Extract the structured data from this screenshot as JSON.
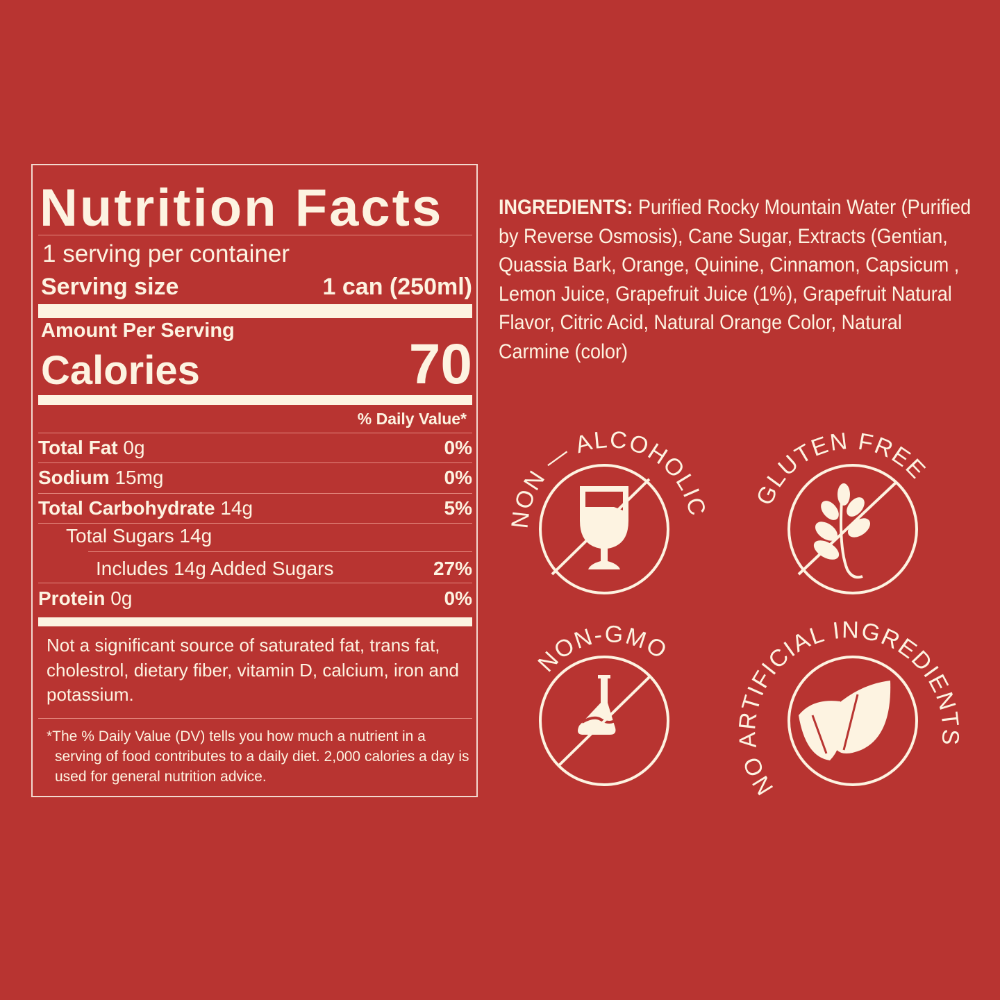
{
  "colors": {
    "background": "#B83431",
    "foreground": "#FDF3E1"
  },
  "nutrition": {
    "title": "Nutrition Facts",
    "servings": "1 serving per container",
    "serving_size_label": "Serving size",
    "serving_size_value": "1 can (250ml)",
    "amount_per_serving": "Amount Per Serving",
    "calories_label": "Calories",
    "calories_value": "70",
    "daily_value_header": "% Daily Value*",
    "rows": [
      {
        "name": "Total Fat",
        "amount": "0g",
        "dv": "0%"
      },
      {
        "name": "Sodium",
        "amount": "15mg",
        "dv": "0%"
      },
      {
        "name": "Total Carbohydrate",
        "amount": "14g",
        "dv": "5%"
      },
      {
        "name": "Total Sugars 14g",
        "amount": "",
        "dv": ""
      },
      {
        "name": "Includes 14g Added Sugars",
        "amount": "",
        "dv": "27%"
      },
      {
        "name": "Protein",
        "amount": "0g",
        "dv": "0%"
      }
    ],
    "not_significant": "Not a significant source of saturated fat, trans fat, cholestrol, dietary fiber, vitamin D, calcium, iron and potassium.",
    "footnote": "*The % Daily Value (DV) tells you how much a nutrient in a serving of food contributes to a daily diet. 2,000 calories a day is used for general nutrition advice."
  },
  "ingredients": {
    "label": "INGREDIENTS:",
    "text": " Purified Rocky Mountain Water (Purified by Reverse Osmosis), Cane Sugar, Extracts (Gentian, Quassia Bark, Orange, Quinine, Cinnamon, Capsicum , Lemon Juice, Grapefruit Juice (1%), Grapefruit Natural Flavor, Citric Acid, Natural Orange Color, Natural Carmine (color)"
  },
  "badges": [
    {
      "text": "NON — ALCOHOLIC",
      "icon": "wine-glass-icon"
    },
    {
      "text": "GLUTEN FREE",
      "icon": "wheat-icon"
    },
    {
      "text": "NON-GMO",
      "icon": "flask-icon"
    },
    {
      "text": "NO ARTIFICIAL INGREDIENTS",
      "icon": "leaves-icon"
    }
  ]
}
